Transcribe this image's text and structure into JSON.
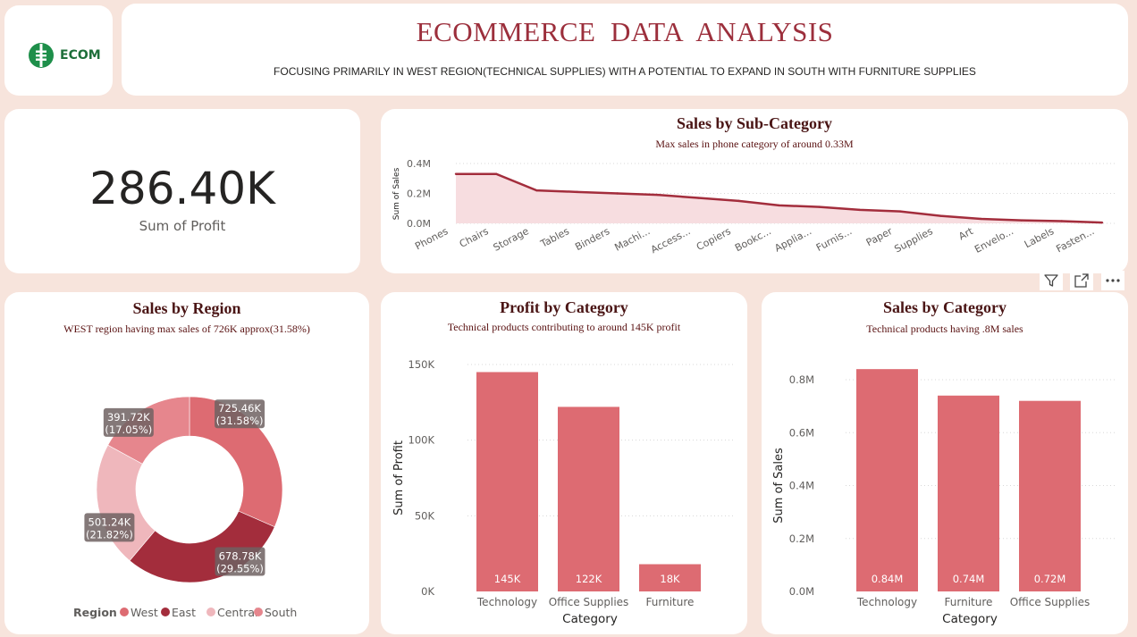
{
  "header": {
    "logo_text": "ECOM",
    "title": "ECOMMERCE  DATA  ANALYSIS",
    "subtitle": "FOCUSING PRIMARILY IN WEST REGION(TECHNICAL SUPPLIES) WITH A POTENTIAL TO EXPAND IN SOUTH WITH FURNITURE SUPPLIES"
  },
  "kpi": {
    "value": "286.40K",
    "label": "Sum of Profit"
  },
  "toolbar": {
    "filter_icon": "filter-icon",
    "focus_icon": "focus-mode-icon",
    "more_icon": "more-options-icon"
  },
  "colors": {
    "accent": "#dd6b72",
    "dark_red": "#a32d3c",
    "east": "#a32d3c",
    "west": "#dd6b72",
    "central": "#efb7bc",
    "south": "#e6868d",
    "title": "#9c2f3c",
    "background": "#f7e4dc"
  },
  "sub_category": {
    "title": "Sales by Sub-Category",
    "subtitle": "Max sales in phone category of around 0.33M",
    "chart_data": {
      "type": "area",
      "ylabel": "Sum of Sales",
      "yticks": [
        "0.0M",
        "0.2M",
        "0.4M"
      ],
      "ylim": [
        0,
        0.4
      ],
      "categories": [
        "Phones",
        "Chairs",
        "Storage",
        "Tables",
        "Binders",
        "Machi...",
        "Access...",
        "Copiers",
        "Bookc...",
        "Applia...",
        "Furnis...",
        "Paper",
        "Supplies",
        "Art",
        "Envelo...",
        "Labels",
        "Fasten..."
      ],
      "values": [
        0.33,
        0.33,
        0.22,
        0.21,
        0.2,
        0.19,
        0.17,
        0.15,
        0.12,
        0.11,
        0.09,
        0.08,
        0.05,
        0.03,
        0.02,
        0.015,
        0.005
      ],
      "grid": true
    }
  },
  "region": {
    "title": "Sales by Region",
    "subtitle": "WEST region having max sales of 726K approx(31.58%)",
    "legend_title": "Region",
    "chart_data": {
      "type": "pie",
      "slices": [
        {
          "name": "West",
          "value": 725.46,
          "value_label": "725.46K",
          "pct_label": "(31.58%)",
          "color": "#dd6b72"
        },
        {
          "name": "East",
          "value": 678.78,
          "value_label": "678.78K",
          "pct_label": "(29.55%)",
          "color": "#a32d3c"
        },
        {
          "name": "Central",
          "value": 501.24,
          "value_label": "501.24K",
          "pct_label": "(21.82%)",
          "color": "#efb7bc"
        },
        {
          "name": "South",
          "value": 391.72,
          "value_label": "391.72K",
          "pct_label": "(17.05%)",
          "color": "#e6868d"
        }
      ],
      "legend_placement": "bottom"
    }
  },
  "profit_category": {
    "title": "Profit by Category",
    "subtitle": "Technical products contributing to around 145K profit",
    "chart_data": {
      "type": "bar",
      "xlabel": "Category",
      "ylabel": "Sum of Profit",
      "categories": [
        "Technology",
        "Office Supplies",
        "Furniture"
      ],
      "values": [
        145,
        122,
        18
      ],
      "data_labels": [
        "145K",
        "122K",
        "18K"
      ],
      "yticks": [
        "0K",
        "50K",
        "100K",
        "150K"
      ],
      "ylim": [
        0,
        150
      ],
      "grid": true
    }
  },
  "sales_category": {
    "title": "Sales by Category",
    "subtitle": "Technical products having .8M sales",
    "chart_data": {
      "type": "bar",
      "xlabel": "Category",
      "ylabel": "Sum of Sales",
      "categories": [
        "Technology",
        "Furniture",
        "Office Supplies"
      ],
      "values": [
        0.84,
        0.74,
        0.72
      ],
      "data_labels": [
        "0.84M",
        "0.74M",
        "0.72M"
      ],
      "yticks": [
        "0.0M",
        "0.2M",
        "0.4M",
        "0.6M",
        "0.8M"
      ],
      "ylim": [
        0,
        0.8
      ],
      "grid": true
    }
  }
}
